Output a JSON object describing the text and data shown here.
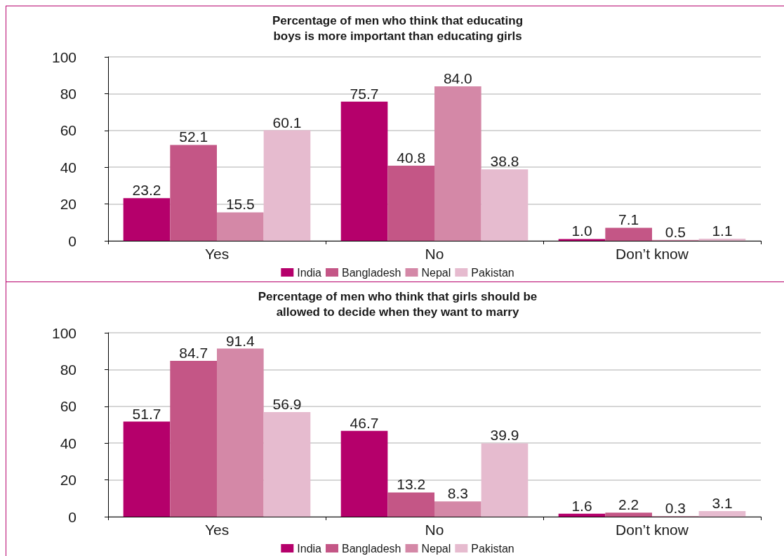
{
  "chart_data": [
    {
      "type": "bar",
      "title": "Percentage of men who think that educating\nboys is more important than educating girls",
      "categories": [
        "Yes",
        "No",
        "Don’t know"
      ],
      "series": [
        {
          "name": "India",
          "color": "#b5006b",
          "values": [
            23.2,
            75.7,
            1.0
          ],
          "value_labels": [
            "23.2",
            "75.7",
            "1.0"
          ]
        },
        {
          "name": "Bangladesh",
          "color": "#c45686",
          "values": [
            52.1,
            40.8,
            7.1
          ],
          "value_labels": [
            "52.1",
            "40.8",
            "7.1"
          ]
        },
        {
          "name": "Nepal",
          "color": "#d488a7",
          "values": [
            15.5,
            84.0,
            0.5
          ],
          "value_labels": [
            "15.5",
            "84.0",
            "0.5"
          ]
        },
        {
          "name": "Pakistan",
          "color": "#e6bbcf",
          "values": [
            60.1,
            38.8,
            1.1
          ],
          "value_labels": [
            "60.1",
            "38.8",
            "1.1"
          ]
        }
      ],
      "ylim": [
        0,
        100
      ],
      "yticks": [
        0,
        20,
        40,
        60,
        80,
        100
      ],
      "grid": "y",
      "legend": "bottom"
    },
    {
      "type": "bar",
      "title": "Percentage of men who think that girls should be\nallowed to decide when they want to marry",
      "categories": [
        "Yes",
        "No",
        "Don’t know"
      ],
      "series": [
        {
          "name": "India",
          "color": "#b5006b",
          "values": [
            51.7,
            46.7,
            1.6
          ]
        },
        {
          "name": "Bangladesh",
          "color": "#c45686",
          "values": [
            84.7,
            13.2,
            2.2
          ]
        },
        {
          "name": "Nepal",
          "color": "#d488a7",
          "values": [
            91.4,
            8.3,
            0.3
          ]
        },
        {
          "name": "Pakistan",
          "color": "#e6bbcf",
          "values": [
            56.9,
            39.9,
            3.1
          ]
        }
      ],
      "ylim": [
        0,
        100
      ],
      "yticks": [
        0,
        20,
        40,
        60,
        80,
        100
      ],
      "grid": "y",
      "legend": "bottom",
      "data_labels": true
    }
  ]
}
